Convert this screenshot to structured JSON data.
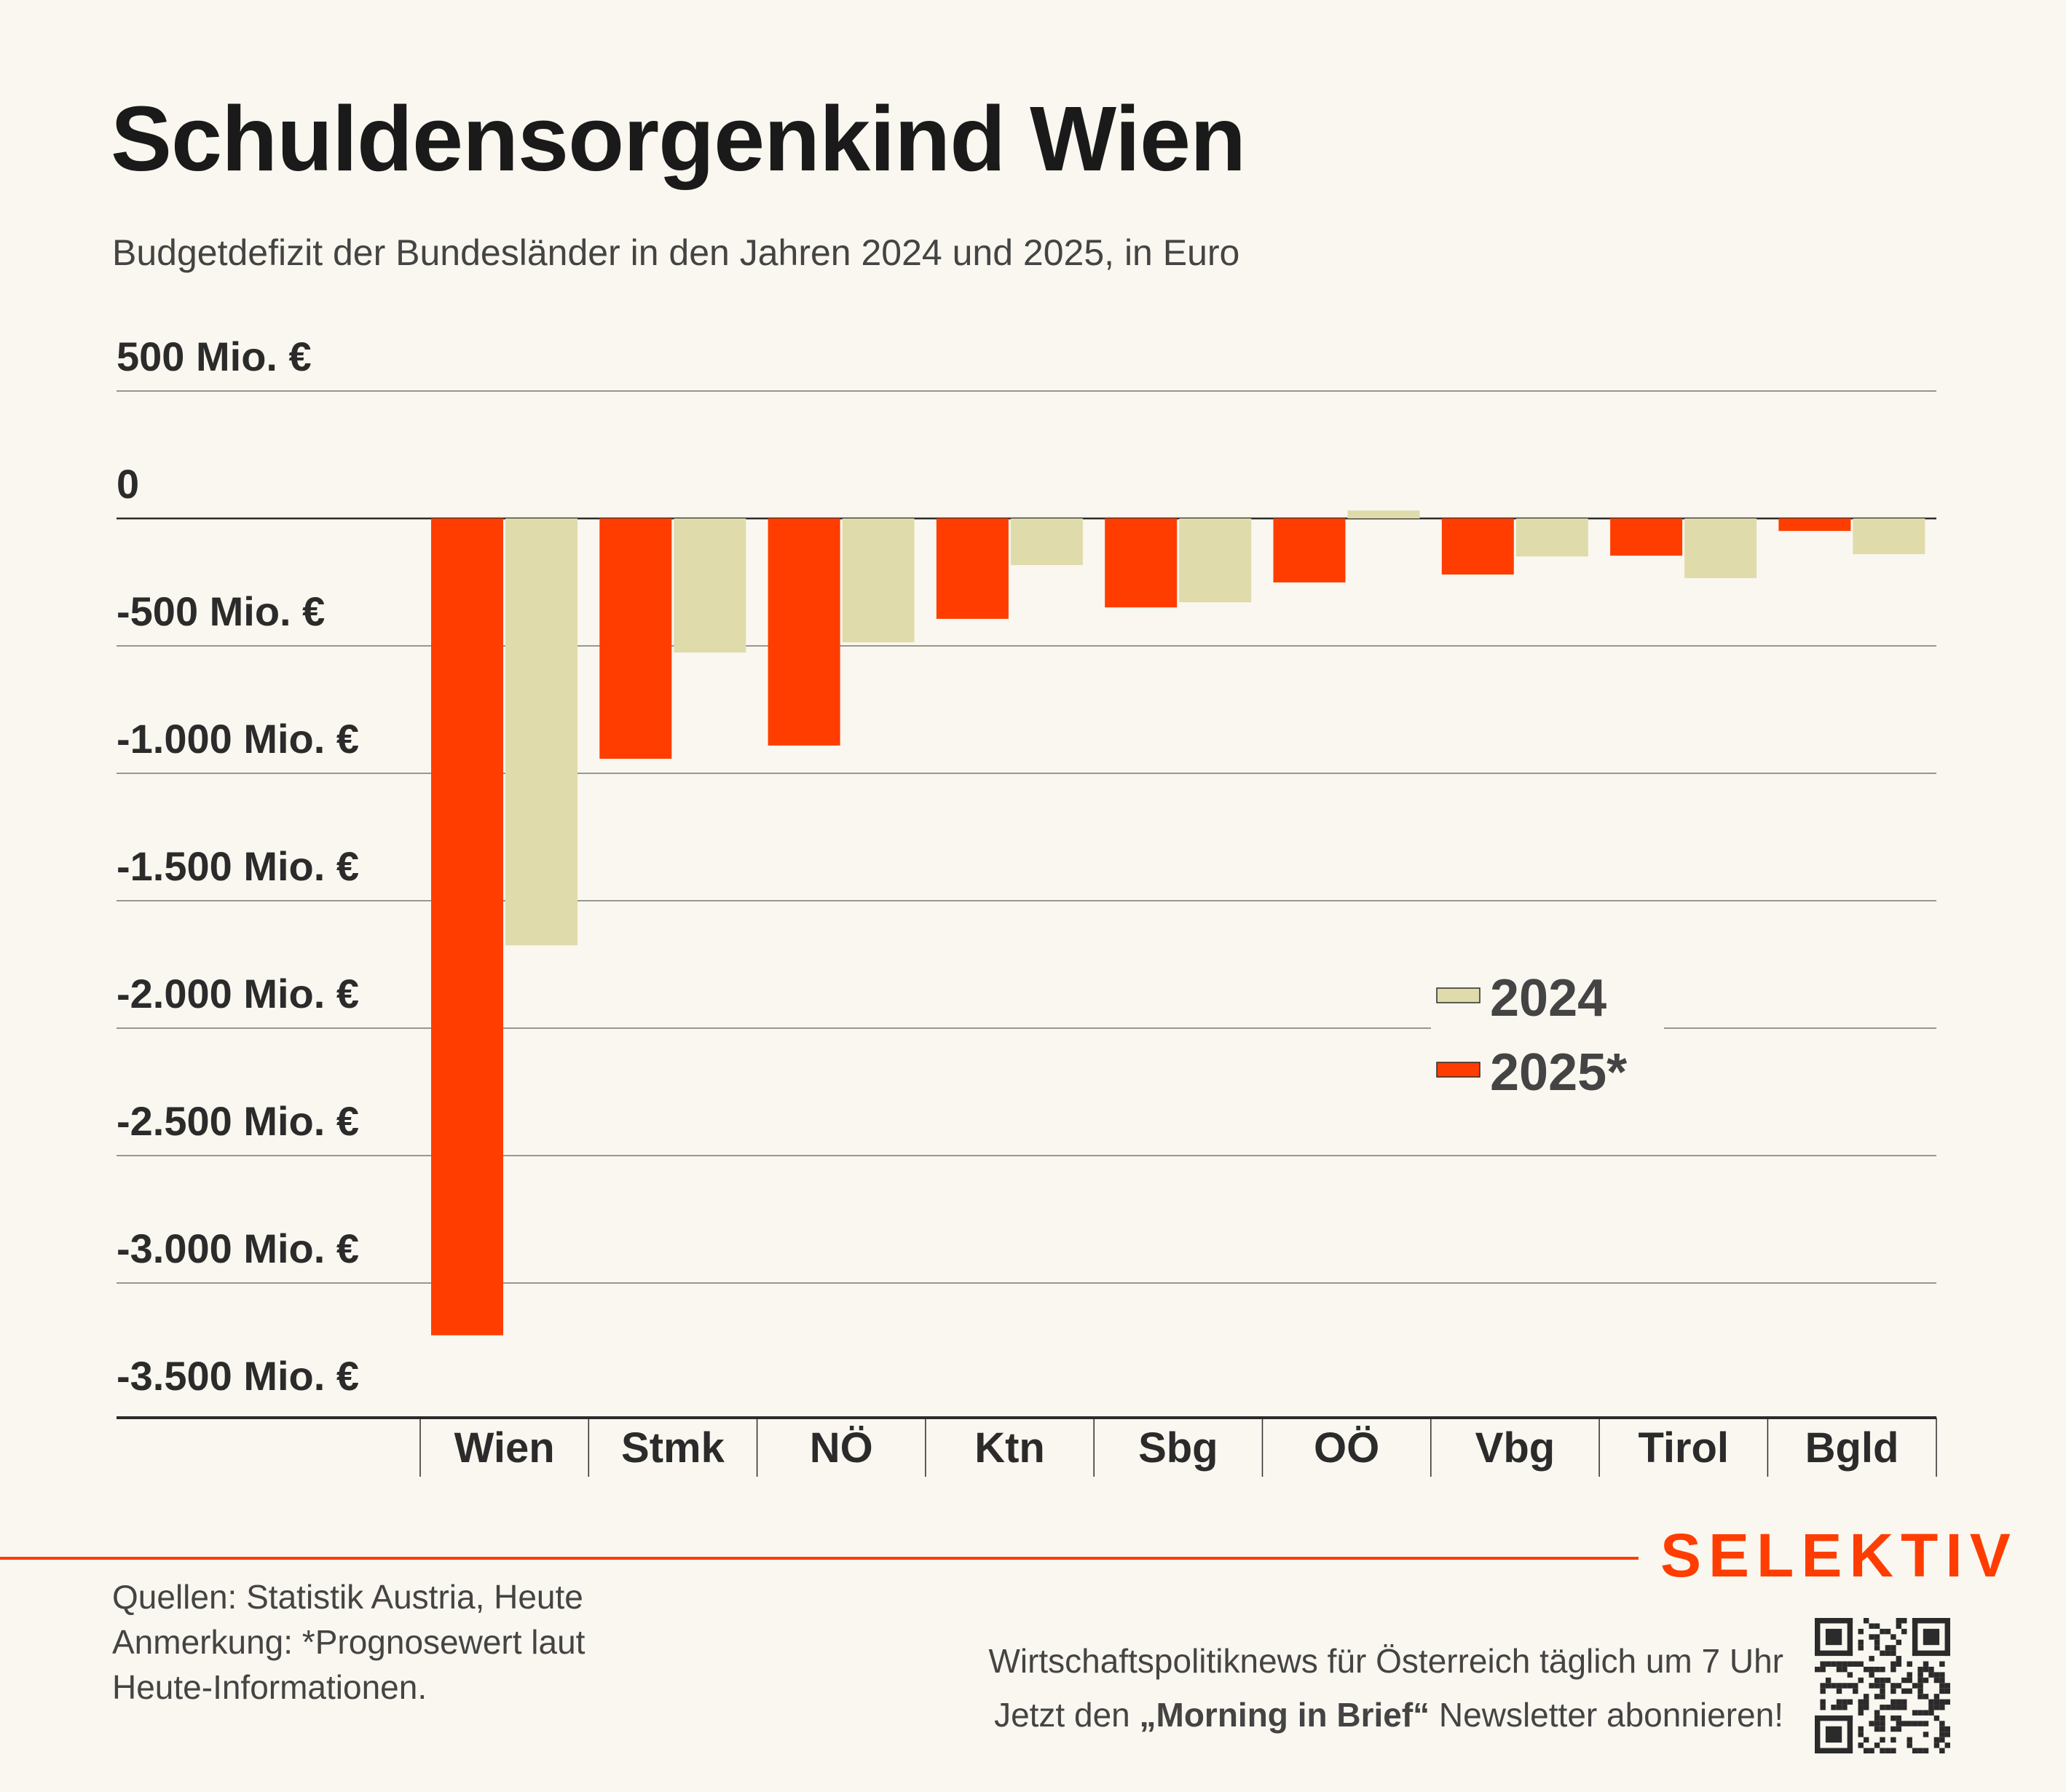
{
  "header": {
    "title": "Schuldensorgenkind Wien",
    "subtitle": "Budgetdefizit der Bundesländer in den Jahren 2024 und 2025, in Euro"
  },
  "colors": {
    "background": "#f9f7ef",
    "series_2024": "#dfdbab",
    "series_2025": "#ff3d00",
    "brand": "#ff3d00",
    "text": "#2b2b2b"
  },
  "chart_data": {
    "type": "bar",
    "title": "Schuldensorgenkind Wien",
    "subtitle": "Budgetdefizit der Bundesländer in den Jahren 2024 und 2025, in Euro",
    "xlabel": "",
    "ylabel": "",
    "unit": "Mio. €",
    "categories": [
      "Wien",
      "Stmk",
      "NÖ",
      "Ktn",
      "Sbg",
      "OÖ",
      "Vbg",
      "Tirol",
      "Bgld"
    ],
    "series": [
      {
        "name": "2025*",
        "color": "#ff3d00",
        "values": [
          -3205,
          -943,
          -891,
          -394,
          -349,
          -251,
          -220,
          -146,
          -49
        ]
      },
      {
        "name": "2024",
        "color": "#dfdbab",
        "values": [
          -1675,
          -526,
          -486,
          -183,
          -329,
          31,
          -149,
          -234,
          -140
        ]
      }
    ],
    "ylim": [
      -3500,
      500
    ],
    "yticks": [
      500,
      0,
      -500,
      -1000,
      -1500,
      -2000,
      -2500,
      -3000,
      -3500
    ],
    "ytick_labels": [
      "500 Mio. €",
      "0",
      "-500 Mio. €",
      "-1.000 Mio. €",
      "-1.500 Mio. €",
      "-2.000 Mio. €",
      "-2.500 Mio. €",
      "-3.000 Mio. €",
      "-3.500 Mio. €"
    ],
    "grid": true,
    "legend": {
      "position": "center-right",
      "entries": [
        "2024",
        "2025*"
      ]
    }
  },
  "footer": {
    "sources": "Quellen: Statistik Austria, Heute",
    "note_line1": "Anmerkung: *Prognosewert laut",
    "note_line2": "Heute-Informationen.",
    "promo_line1": "Wirtschaftspolitiknews für Österreich täglich um 7 Uhr",
    "promo_line2_pre": "Jetzt den ",
    "promo_line2_bold": "„Morning in Brief“",
    "promo_line2_post": " Newsletter abonnieren!",
    "brand": "SELEKTIV",
    "qr_icon": "qr-code-icon"
  }
}
